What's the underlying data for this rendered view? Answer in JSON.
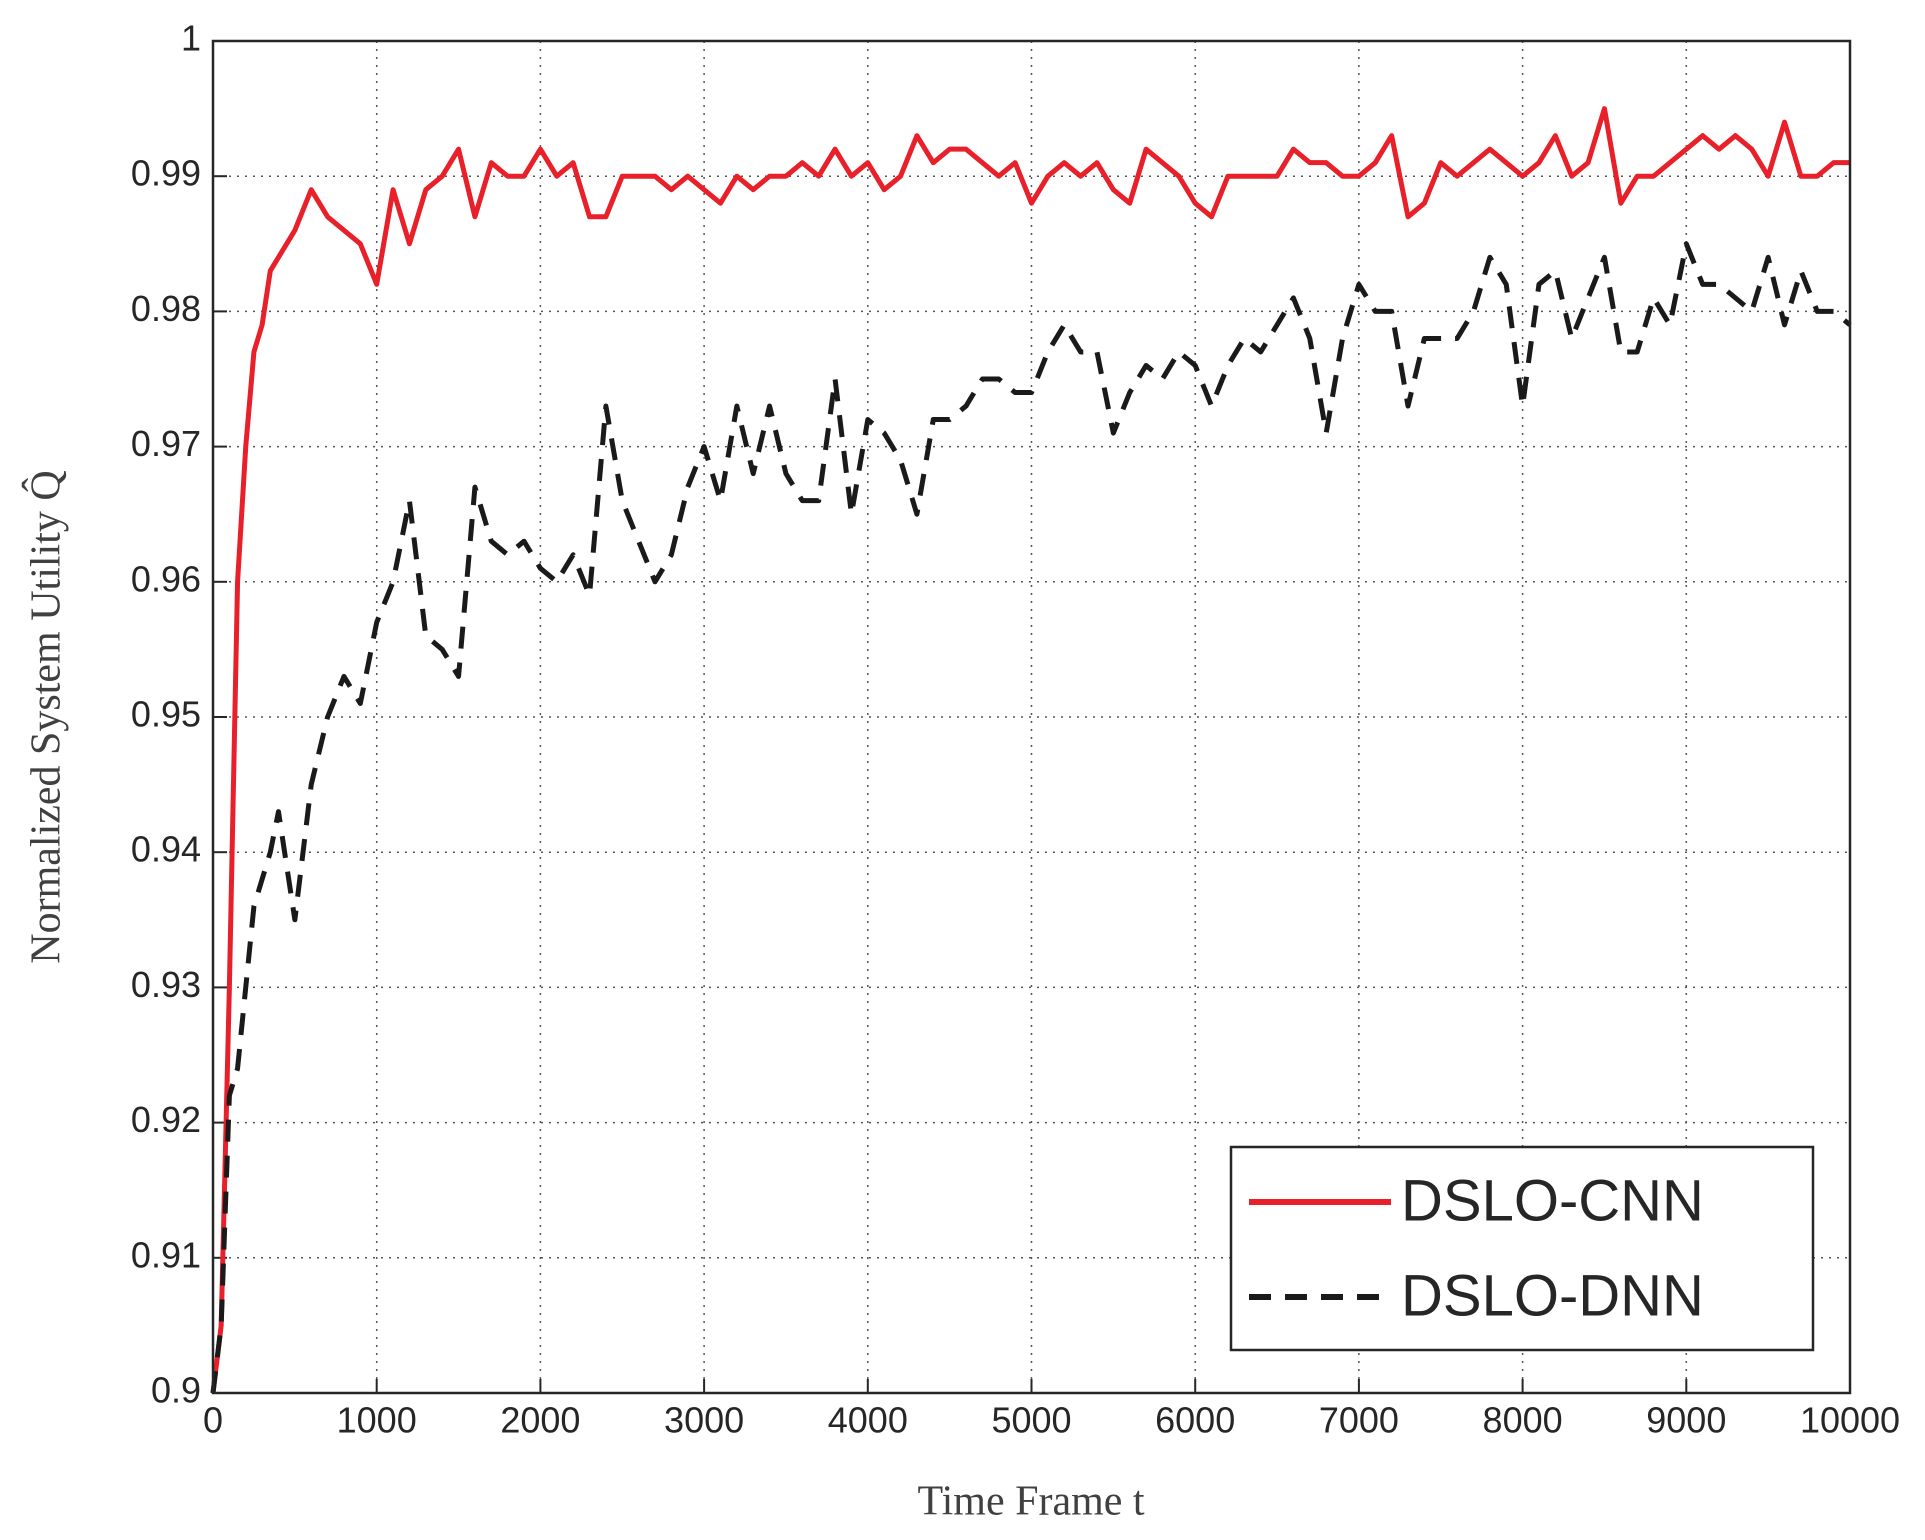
{
  "chart_data": {
    "type": "line",
    "xlabel": "Time Frame t",
    "ylabel": "Normalized System Utility Q̂",
    "x": [
      0,
      50,
      100,
      150,
      200,
      250,
      300,
      350,
      400,
      500,
      600,
      700,
      800,
      900,
      1000,
      1100,
      1200,
      1300,
      1400,
      1500,
      1600,
      1700,
      1800,
      1900,
      2000,
      2100,
      2200,
      2300,
      2400,
      2500,
      2600,
      2700,
      2800,
      2900,
      3000,
      3100,
      3200,
      3300,
      3400,
      3500,
      3600,
      3700,
      3800,
      3900,
      4000,
      4100,
      4200,
      4300,
      4400,
      4500,
      4600,
      4700,
      4800,
      4900,
      5000,
      5100,
      5200,
      5300,
      5400,
      5500,
      5600,
      5700,
      5800,
      5900,
      6000,
      6100,
      6200,
      6300,
      6400,
      6500,
      6600,
      6700,
      6800,
      6900,
      7000,
      7100,
      7200,
      7300,
      7400,
      7500,
      7600,
      7700,
      7800,
      7900,
      8000,
      8100,
      8200,
      8300,
      8400,
      8500,
      8600,
      8700,
      8800,
      8900,
      9000,
      9100,
      9200,
      9300,
      9400,
      9500,
      9600,
      9700,
      9800,
      9900,
      10000
    ],
    "series": [
      {
        "name": "DSLO-CNN",
        "color": "#e8202a",
        "dash": "solid",
        "values": [
          0.9,
          0.905,
          0.93,
          0.96,
          0.97,
          0.977,
          0.979,
          0.983,
          0.984,
          0.986,
          0.989,
          0.987,
          0.986,
          0.985,
          0.982,
          0.989,
          0.985,
          0.989,
          0.99,
          0.992,
          0.987,
          0.991,
          0.99,
          0.99,
          0.992,
          0.99,
          0.991,
          0.987,
          0.987,
          0.99,
          0.99,
          0.99,
          0.989,
          0.99,
          0.989,
          0.988,
          0.99,
          0.989,
          0.99,
          0.99,
          0.991,
          0.99,
          0.992,
          0.99,
          0.991,
          0.989,
          0.99,
          0.993,
          0.991,
          0.992,
          0.992,
          0.991,
          0.99,
          0.991,
          0.988,
          0.99,
          0.991,
          0.99,
          0.991,
          0.989,
          0.988,
          0.992,
          0.991,
          0.99,
          0.988,
          0.987,
          0.99,
          0.99,
          0.99,
          0.99,
          0.992,
          0.991,
          0.991,
          0.99,
          0.99,
          0.991,
          0.993,
          0.987,
          0.988,
          0.991,
          0.99,
          0.991,
          0.992,
          0.991,
          0.99,
          0.991,
          0.993,
          0.99,
          0.991,
          0.995,
          0.988,
          0.99,
          0.99,
          0.991,
          0.992,
          0.993,
          0.992,
          0.993,
          0.992,
          0.99,
          0.994,
          0.99,
          0.99,
          0.991,
          0.991
        ]
      },
      {
        "name": "DSLO-DNN",
        "color": "#1a1a1a",
        "dash": "dashed",
        "values": [
          0.9,
          0.905,
          0.922,
          0.924,
          0.93,
          0.936,
          0.938,
          0.94,
          0.943,
          0.935,
          0.945,
          0.95,
          0.953,
          0.951,
          0.957,
          0.96,
          0.966,
          0.956,
          0.955,
          0.953,
          0.967,
          0.963,
          0.962,
          0.963,
          0.961,
          0.96,
          0.962,
          0.959,
          0.973,
          0.966,
          0.963,
          0.96,
          0.962,
          0.967,
          0.97,
          0.966,
          0.973,
          0.968,
          0.973,
          0.968,
          0.966,
          0.966,
          0.975,
          0.965,
          0.972,
          0.971,
          0.969,
          0.965,
          0.972,
          0.972,
          0.973,
          0.975,
          0.975,
          0.974,
          0.974,
          0.977,
          0.979,
          0.977,
          0.977,
          0.971,
          0.974,
          0.976,
          0.975,
          0.977,
          0.976,
          0.973,
          0.976,
          0.978,
          0.977,
          0.979,
          0.981,
          0.978,
          0.971,
          0.978,
          0.982,
          0.98,
          0.98,
          0.973,
          0.978,
          0.978,
          0.978,
          0.98,
          0.984,
          0.982,
          0.973,
          0.982,
          0.983,
          0.978,
          0.981,
          0.984,
          0.977,
          0.977,
          0.981,
          0.979,
          0.985,
          0.982,
          0.982,
          0.981,
          0.98,
          0.984,
          0.979,
          0.983,
          0.98,
          0.98,
          0.979
        ]
      }
    ],
    "xlim": [
      0,
      10000
    ],
    "xticks": [
      0,
      1000,
      2000,
      3000,
      4000,
      5000,
      6000,
      7000,
      8000,
      9000,
      10000
    ],
    "ylim": [
      0.9,
      1
    ],
    "yticks": [
      0.9,
      0.91,
      0.92,
      0.93,
      0.94,
      0.95,
      0.96,
      0.97,
      0.98,
      0.99,
      1
    ],
    "grid": true,
    "legend": "lower right"
  }
}
